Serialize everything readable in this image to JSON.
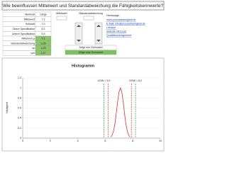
{
  "title": "Wie beeinflussen Mittelwert und Standardabweichung die Fähigkeitskennwerte?",
  "table": {
    "rows": [
      [
        "Merkmal",
        "Länge"
      ],
      [
        "Mittelwert",
        "7,1"
      ],
      [
        "Sollmaß",
        "7,0"
      ],
      [
        "Obere Spezifikation",
        "8,2"
      ],
      [
        "Untere Spezifikation",
        "5,9"
      ],
      [
        "Mittelwert µ",
        "7,1"
      ],
      [
        "Standardabweichung",
        "0,25"
      ],
      [
        "cp",
        "1,53"
      ],
      [
        "cpk",
        "1,47"
      ]
    ]
  },
  "controls": {
    "mean_label": "Mittelwert",
    "sd_label": "Standardabweichung",
    "show_min": "Zeige min Grenzwert",
    "show_max": "Zeige max Grenzwert"
  },
  "links": {
    "heading": "Homepage:",
    "items": [
      "www.prozessfaehigkeit.de",
      "E-Mail: info@prozessfaehigkeit.de",
      "Literatur",
      "Statistik mit Excel",
      "Qualitätsmanagement"
    ]
  },
  "chart": {
    "title": "Histogramm",
    "ylabel": "Häufigkeit",
    "xlim": [
      0,
      10
    ],
    "xticks": [
      0,
      2,
      4,
      6,
      8,
      10
    ],
    "ylim": [
      0,
      1.2
    ],
    "yticks": [
      0,
      0.2,
      0.4,
      0.6,
      0.8,
      1,
      1.2
    ],
    "curve": {
      "color": "#e03030",
      "x": [
        6.4,
        6.5,
        6.6,
        6.7,
        6.8,
        6.9,
        7.0,
        7.1,
        7.2,
        7.3,
        7.4,
        7.5,
        7.6,
        7.7,
        7.8
      ],
      "y": [
        0.02,
        0.06,
        0.14,
        0.28,
        0.49,
        0.73,
        0.92,
        1,
        0.92,
        0.73,
        0.49,
        0.28,
        0.14,
        0.06,
        0.02
      ]
    },
    "limits": [
      {
        "value": 5.9,
        "color": "#2a9a3a",
        "label": "UGW = 5,9"
      },
      {
        "value": 8.2,
        "color": "#2a9a3a",
        "label": "OGW = 8,2"
      },
      {
        "value": 6.2,
        "color": "#e03030"
      },
      {
        "value": 7.9,
        "color": "#e03030"
      }
    ]
  }
}
